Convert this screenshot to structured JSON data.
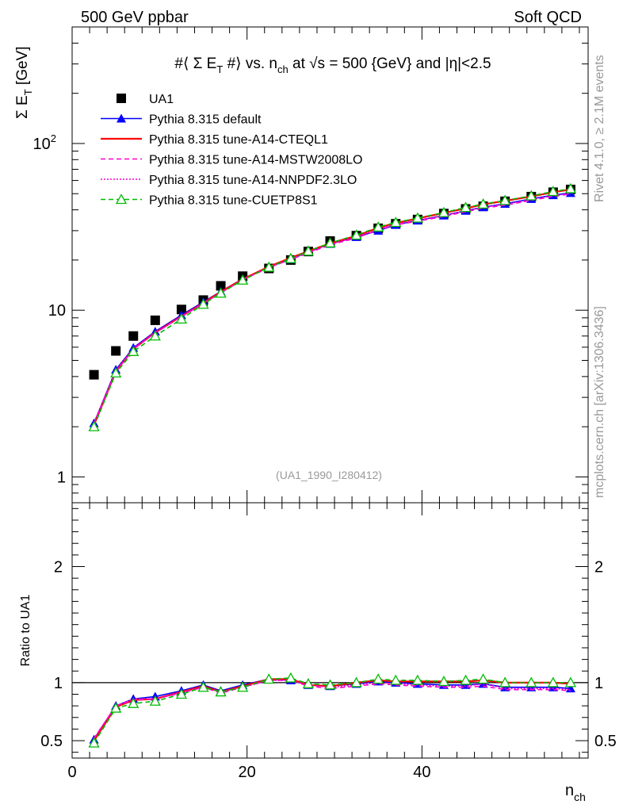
{
  "header": {
    "left": "500 GeV ppbar",
    "right": "Soft QCD"
  },
  "side_text": {
    "rivet": "Rivet 4.1.0, ≥ 2.1M events",
    "mcplots": "mcplots.cern.ch [arXiv:1306.3436]"
  },
  "chart_data": [
    {
      "type": "line",
      "panel": "main",
      "title_parts": {
        "t1": "#⟨ Σ E",
        "t1sub": "T",
        "t2": " #⟩ vs. n",
        "t2sub": "ch",
        "t3": " at √s = 500 {GeV} and |η|<2.5"
      },
      "ylabel": {
        "main": "Σ E",
        "sub": "T",
        "unit": " [GeV]"
      },
      "yscale": "log",
      "ylim": [
        0.7,
        500
      ],
      "xlim": [
        0,
        59
      ],
      "yticks": [
        {
          "v": 1,
          "label": "1"
        },
        {
          "v": 10,
          "label": "10"
        },
        {
          "v": 100,
          "label": "10",
          "sup": "2"
        }
      ],
      "analysis_id": "(UA1_1990_I280412)",
      "x": [
        2.5,
        5,
        7,
        9.5,
        12.5,
        15,
        17,
        19.5,
        22.5,
        25,
        27,
        29.5,
        32.5,
        35,
        37,
        39.5,
        42.5,
        45,
        47,
        49.5,
        52.5,
        55,
        57
      ],
      "series": [
        {
          "name": "UA1",
          "color": "#000000",
          "style": "markers",
          "marker": "square",
          "values": [
            4.1,
            5.7,
            7.0,
            8.7,
            10.1,
            11.5,
            14.0,
            16.0,
            17.8,
            20.0,
            22.5,
            26.0,
            28.0,
            31.0,
            33.0,
            35.0,
            38.0,
            40.5,
            42.0,
            45.0,
            48.0,
            51.0,
            53.0
          ]
        },
        {
          "name": "Pythia 8.315 default",
          "color": "#0000ff",
          "style": "solid",
          "marker": "triangle-filled",
          "values": [
            2.1,
            4.4,
            5.95,
            7.45,
            9.35,
            11.2,
            12.95,
            15.4,
            18.15,
            20.2,
            22.4,
            25.0,
            27.5,
            30.0,
            32.5,
            34.5,
            37.0,
            39.5,
            41.5,
            43.5,
            46.5,
            49.0,
            50.5
          ]
        },
        {
          "name": "Pythia 8.315 tune-A14-CTEQL1",
          "color": "#ff0000",
          "style": "solid",
          "marker": "none",
          "values": [
            2.05,
            4.3,
            5.85,
            7.35,
            9.2,
            11.05,
            12.9,
            15.35,
            18.25,
            20.6,
            22.6,
            25.2,
            27.9,
            31.2,
            33.3,
            35.5,
            38.3,
            40.8,
            43.1,
            45.3,
            48.1,
            51.0,
            53.0
          ]
        },
        {
          "name": "Pythia 8.315 tune-A14-MSTW2008LO",
          "color": "#ff00cc",
          "style": "dashed",
          "marker": "none",
          "values": [
            2.1,
            4.3,
            5.85,
            7.3,
            9.15,
            10.95,
            12.7,
            15.2,
            18.0,
            20.2,
            22.0,
            24.7,
            27.1,
            30.3,
            32.5,
            34.2,
            36.5,
            39.0,
            41.0,
            42.6,
            45.6,
            48.2,
            49.7
          ]
        },
        {
          "name": "Pythia 8.315 tune-A14-NNPDF2.3LO",
          "color": "#ff00cc",
          "style": "dotted",
          "marker": "none",
          "values": [
            2.1,
            4.35,
            5.9,
            7.35,
            9.2,
            11.0,
            12.75,
            15.25,
            18.1,
            20.3,
            22.2,
            24.9,
            27.4,
            30.6,
            32.8,
            34.5,
            37.0,
            39.4,
            41.5,
            43.1,
            46.1,
            48.7,
            50.2
          ]
        },
        {
          "name": "Pythia 8.315 tune-CUETP8S1",
          "color": "#00bb00",
          "style": "dashed",
          "marker": "triangle-open",
          "values": [
            2.0,
            4.2,
            5.65,
            7.0,
            8.85,
            10.85,
            12.65,
            15.15,
            18.1,
            20.4,
            22.6,
            25.3,
            28.2,
            31.5,
            33.6,
            35.7,
            38.5,
            41.3,
            43.3,
            45.5,
            48.5,
            51.5,
            53.5
          ]
        }
      ]
    },
    {
      "type": "line",
      "panel": "ratio",
      "ylabel": "Ratio to UA1",
      "xlabel": {
        "main": "n",
        "sub": "ch"
      },
      "ylim": [
        0.35,
        2.55
      ],
      "xlim": [
        0,
        59
      ],
      "xticks": [
        {
          "v": 0,
          "label": "0"
        },
        {
          "v": 20,
          "label": "20"
        },
        {
          "v": 40,
          "label": "40"
        }
      ],
      "yticks": [
        {
          "v": 0.5,
          "label": "0.5"
        },
        {
          "v": 1,
          "label": "1"
        },
        {
          "v": 2,
          "label": "2"
        }
      ],
      "reference": 1,
      "x": [
        2.5,
        5,
        7,
        9.5,
        12.5,
        15,
        17,
        19.5,
        22.5,
        25,
        27,
        29.5,
        32.5,
        35,
        37,
        39.5,
        42.5,
        45,
        47,
        49.5,
        52.5,
        55,
        57
      ],
      "series": [
        {
          "name": "Pythia 8.315 default",
          "color": "#0000ff",
          "style": "solid",
          "marker": "triangle-filled",
          "values": [
            0.51,
            0.8,
            0.86,
            0.88,
            0.93,
            0.98,
            0.93,
            0.98,
            1.03,
            1.02,
            0.98,
            0.97,
            0.99,
            1.01,
            1.0,
            0.99,
            0.98,
            0.98,
            0.99,
            0.96,
            0.96,
            0.96,
            0.95
          ]
        },
        {
          "name": "Pythia 8.315 tune-A14-CTEQL1",
          "color": "#ff0000",
          "style": "solid",
          "marker": "none",
          "values": [
            0.5,
            0.79,
            0.85,
            0.86,
            0.92,
            0.97,
            0.92,
            0.97,
            1.03,
            1.03,
            0.98,
            0.97,
            1.0,
            1.02,
            1.01,
            1.01,
            1.01,
            1.01,
            1.02,
            1.0,
            1.0,
            1.0,
            0.99
          ]
        },
        {
          "name": "Pythia 8.315 tune-A14-MSTW2008LO",
          "color": "#ff00cc",
          "style": "dashed",
          "marker": "none",
          "values": [
            0.52,
            0.8,
            0.85,
            0.86,
            0.91,
            0.96,
            0.91,
            0.96,
            1.02,
            1.02,
            0.97,
            0.95,
            0.97,
            0.99,
            0.98,
            0.97,
            0.96,
            0.96,
            0.97,
            0.94,
            0.94,
            0.94,
            0.93
          ]
        },
        {
          "name": "Pythia 8.315 tune-A14-NNPDF2.3LO",
          "color": "#ff00cc",
          "style": "dotted",
          "marker": "none",
          "values": [
            0.52,
            0.8,
            0.86,
            0.86,
            0.92,
            0.96,
            0.92,
            0.96,
            1.02,
            1.02,
            0.98,
            0.96,
            0.98,
            1.0,
            0.99,
            0.98,
            0.97,
            0.97,
            0.99,
            0.95,
            0.95,
            0.95,
            0.94
          ]
        },
        {
          "name": "Pythia 8.315 tune-CUETP8S1",
          "color": "#00bb00",
          "style": "dashed",
          "marker": "triangle-open",
          "values": [
            0.48,
            0.78,
            0.82,
            0.84,
            0.9,
            0.96,
            0.92,
            0.96,
            1.03,
            1.04,
            0.99,
            0.98,
            1.0,
            1.03,
            1.02,
            1.02,
            1.01,
            1.02,
            1.03,
            1.0,
            1.0,
            1.0,
            1.0
          ]
        }
      ]
    }
  ]
}
